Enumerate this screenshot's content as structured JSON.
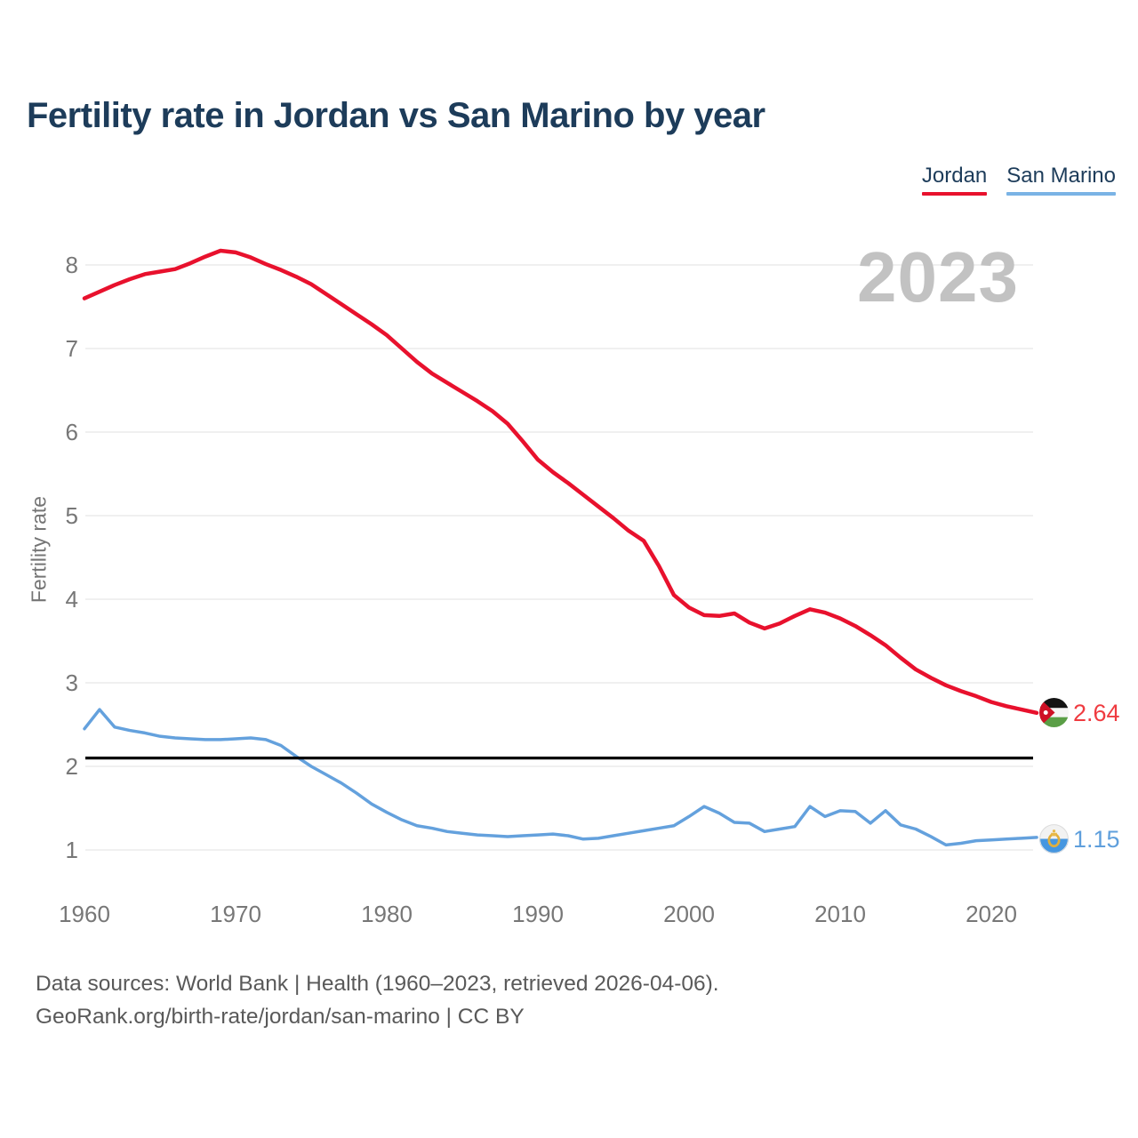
{
  "header": {
    "title": "Fertility rate in Jordan vs San Marino by year"
  },
  "watermark": {
    "text": "2023"
  },
  "legend": {
    "items": [
      {
        "label": "Jordan",
        "color": "#e8112d"
      },
      {
        "label": "San Marino",
        "color": "#7ab3e5"
      }
    ]
  },
  "end_labels": {
    "jordan": "2.64",
    "san_marino": "1.15"
  },
  "footer": {
    "line1": "Data sources: World Bank | Health (1960–2023, retrieved 2026-04-06).",
    "line2": "GeoRank.org/birth-rate/jordan/san-marino | CC BY"
  },
  "colors": {
    "title_text": "#1d3c5a",
    "jordan_line": "#e8112d",
    "san_marino_line": "#64a1dd",
    "jordan_label": "#ef3b40",
    "san_marino_label": "#5f9fdc",
    "gridline": "#ececec",
    "tick_text": "#777777",
    "watermark": "#c2c2c2",
    "footer_text": "#595959",
    "reference_line": "#000000"
  },
  "chart_data": {
    "type": "line",
    "title": "Fertility rate in Jordan vs San Marino by year",
    "xlabel": "",
    "ylabel": "Fertility rate",
    "xlim": [
      1960,
      2023
    ],
    "ylim": [
      1,
      8.5
    ],
    "x_ticks": [
      1960,
      1970,
      1980,
      1990,
      2000,
      2010,
      2020
    ],
    "y_ticks": [
      1,
      2,
      3,
      4,
      5,
      6,
      7,
      8
    ],
    "grid": "horizontal",
    "legend_position": "top-right",
    "reference_line": {
      "value": 2.1,
      "color": "#000000"
    },
    "x": [
      1960,
      1961,
      1962,
      1963,
      1964,
      1965,
      1966,
      1967,
      1968,
      1969,
      1970,
      1971,
      1972,
      1973,
      1974,
      1975,
      1976,
      1977,
      1978,
      1979,
      1980,
      1981,
      1982,
      1983,
      1984,
      1985,
      1986,
      1987,
      1988,
      1989,
      1990,
      1991,
      1992,
      1993,
      1994,
      1995,
      1996,
      1997,
      1998,
      1999,
      2000,
      2001,
      2002,
      2003,
      2004,
      2005,
      2006,
      2007,
      2008,
      2009,
      2010,
      2011,
      2012,
      2013,
      2014,
      2015,
      2016,
      2017,
      2018,
      2019,
      2020,
      2021,
      2022,
      2023
    ],
    "series": [
      {
        "name": "Jordan",
        "color": "#e8112d",
        "stroke_width": 4.5,
        "end_label": "2.64",
        "values": [
          7.6,
          7.68,
          7.76,
          7.83,
          7.89,
          7.92,
          7.95,
          8.02,
          8.1,
          8.17,
          8.15,
          8.09,
          8.01,
          7.94,
          7.86,
          7.77,
          7.65,
          7.53,
          7.41,
          7.29,
          7.16,
          7.0,
          6.84,
          6.7,
          6.59,
          6.48,
          6.37,
          6.25,
          6.1,
          5.89,
          5.67,
          5.52,
          5.39,
          5.25,
          5.11,
          4.97,
          4.82,
          4.7,
          4.4,
          4.05,
          3.9,
          3.81,
          3.8,
          3.83,
          3.72,
          3.65,
          3.71,
          3.8,
          3.88,
          3.84,
          3.77,
          3.68,
          3.57,
          3.45,
          3.3,
          3.16,
          3.06,
          2.97,
          2.9,
          2.84,
          2.77,
          2.72,
          2.68,
          2.64
        ]
      },
      {
        "name": "San Marino",
        "color": "#64a1dd",
        "stroke_width": 3.5,
        "end_label": "1.15",
        "values": [
          2.45,
          2.68,
          2.47,
          2.43,
          2.4,
          2.36,
          2.34,
          2.33,
          2.32,
          2.32,
          2.33,
          2.34,
          2.32,
          2.25,
          2.12,
          2.0,
          1.9,
          1.8,
          1.68,
          1.55,
          1.45,
          1.36,
          1.29,
          1.26,
          1.22,
          1.2,
          1.18,
          1.17,
          1.16,
          1.17,
          1.18,
          1.19,
          1.17,
          1.13,
          1.14,
          1.17,
          1.2,
          1.23,
          1.26,
          1.29,
          1.4,
          1.52,
          1.44,
          1.33,
          1.32,
          1.22,
          1.25,
          1.28,
          1.52,
          1.4,
          1.47,
          1.46,
          1.32,
          1.47,
          1.3,
          1.25,
          1.16,
          1.06,
          1.08,
          1.11,
          1.12,
          1.13,
          1.14,
          1.15
        ]
      }
    ]
  }
}
